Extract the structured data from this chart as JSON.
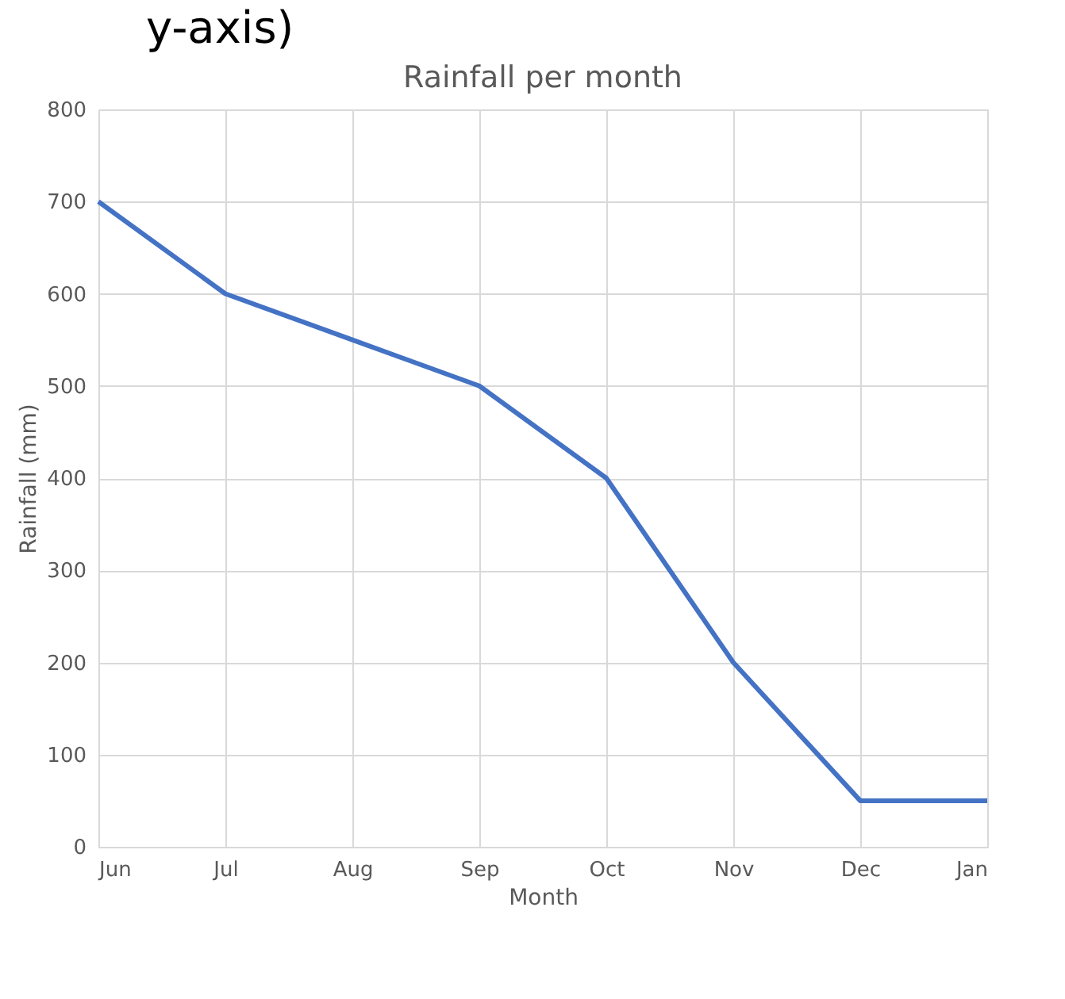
{
  "chart_data": {
    "type": "line",
    "title": "Rainfall per month",
    "xlabel": "Month",
    "ylabel": "Rainfall (mm)",
    "annotations": [
      "y-axis)"
    ],
    "categories": [
      "Jun",
      "Jul",
      "Aug",
      "Sep",
      "Oct",
      "Nov",
      "Dec",
      "Jan"
    ],
    "series": [
      {
        "color": "#4472c4",
        "values": [
          700,
          600,
          550,
          500,
          400,
          200,
          50,
          50
        ]
      }
    ],
    "ylim": [
      0,
      800
    ],
    "yticks": [
      0,
      100,
      200,
      300,
      400,
      500,
      600,
      700,
      800
    ],
    "grid": true,
    "marker": "none",
    "line_style": "solid"
  }
}
